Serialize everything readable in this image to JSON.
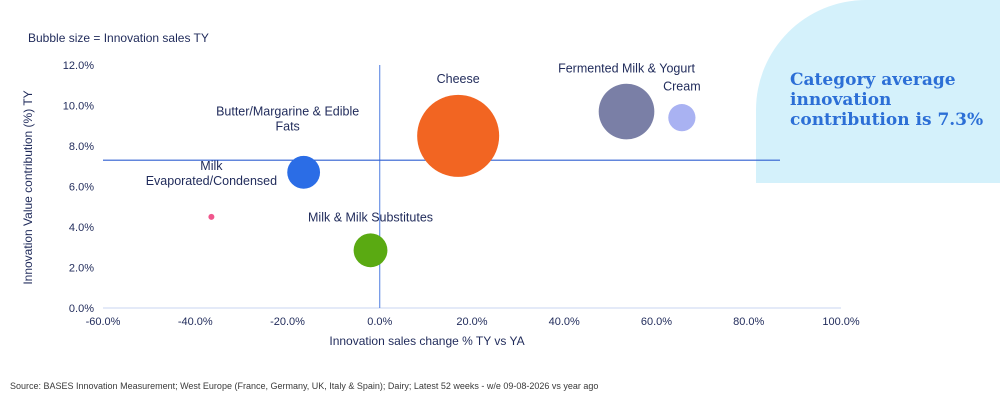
{
  "bubble_note": "Bubble size = Innovation sales TY",
  "callout": "Category average innovation contribution is 7.3%",
  "source": "Source: BASES Innovation Measurement; West Europe (France, Germany, UK, Italy & Spain); Dairy; Latest 52 weeks - w/e 09-08-2026 vs year ago",
  "chart_data": {
    "type": "scatter",
    "xlabel": "Innovation sales change % TY vs YA",
    "ylabel": "Innovation Value contribution (%) TY",
    "xlim": [
      -60,
      100
    ],
    "ylim": [
      0,
      12
    ],
    "xticks": [
      -60,
      -40,
      -20,
      0,
      20,
      40,
      60,
      80,
      100
    ],
    "yticks": [
      0,
      2,
      4,
      6,
      8,
      10,
      12
    ],
    "xtick_labels": [
      "-60.0%",
      "-40.0%",
      "-20.0%",
      "0.0%",
      "20.0%",
      "40.0%",
      "60.0%",
      "80.0%",
      "100.0%"
    ],
    "ytick_labels": [
      "0.0%",
      "2.0%",
      "4.0%",
      "6.0%",
      "8.0%",
      "10.0%",
      "12.0%"
    ],
    "reference_line_y": 7.3,
    "grid": false,
    "points": [
      {
        "label": "Cheese",
        "x": 17,
        "y": 8.5,
        "size": 100,
        "color": "#f26522"
      },
      {
        "label": "Fermented Milk & Yogurt",
        "x": 53.5,
        "y": 9.7,
        "size": 46,
        "color": "#7a7fa6"
      },
      {
        "label": "Cream",
        "x": 65.5,
        "y": 9.4,
        "size": 11,
        "color": "#a9b2f2"
      },
      {
        "label": "Butter/Margarine & Edible Fats",
        "x": -16.5,
        "y": 6.7,
        "size": 16,
        "color": "#2b6de6"
      },
      {
        "label": "Milk & Milk Substitutes",
        "x": -2,
        "y": 2.85,
        "size": 17,
        "color": "#5aaa12"
      },
      {
        "label": "Milk Evaporated/Condensed",
        "x": -36.5,
        "y": 4.5,
        "size": 0.5,
        "color": "#f0568c"
      }
    ]
  }
}
